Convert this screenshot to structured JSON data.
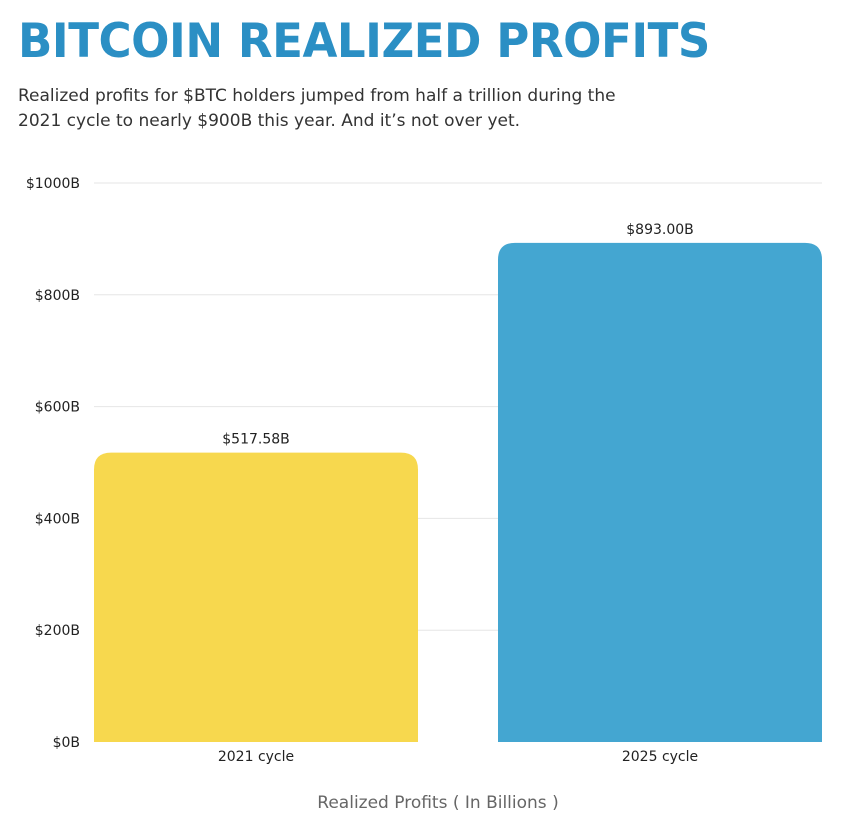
{
  "header": {
    "title": "BITCOIN REALIZED PROFITS",
    "subtitle": "Realized profits for $BTC holders jumped from half a trillion during the 2021 cycle to nearly $900B this year. And it’s not over yet."
  },
  "colors": {
    "title": "#2b8fc4",
    "bar_2021": "#f7d84e",
    "bar_2025": "#44a6d1",
    "grid": "#e6e6e6"
  },
  "chart_data": {
    "type": "bar",
    "title": "BITCOIN REALIZED PROFITS",
    "xlabel": "Realized Profits ( In Billions )",
    "ylabel": "",
    "categories": [
      "2021 cycle",
      "2025 cycle"
    ],
    "values": [
      517.58,
      893.0
    ],
    "data_labels": [
      "$517.58B",
      "$893.00B"
    ],
    "ylim": [
      0,
      1000
    ],
    "yticks": [
      0,
      200,
      400,
      600,
      800,
      1000
    ],
    "ytick_labels": [
      "$0B",
      "$200B",
      "$400B",
      "$600B",
      "$800B",
      "$1000B"
    ],
    "grid": true,
    "legend": "none"
  }
}
